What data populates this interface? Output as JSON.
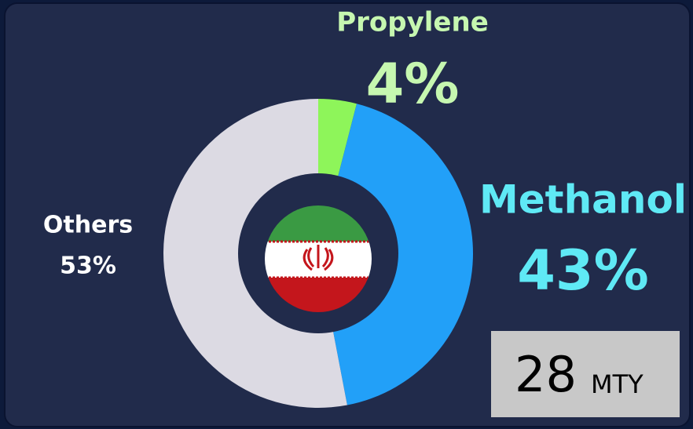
{
  "chart_data": {
    "type": "pie",
    "donut": true,
    "categories": [
      "Propylene",
      "Methanol",
      "Others"
    ],
    "values": [
      4,
      43,
      53
    ],
    "value_labels": [
      "4%",
      "43%",
      "53%"
    ],
    "colors": [
      "#8ef55a",
      "#22a0f8",
      "#dcdae3"
    ],
    "annotation": {
      "value": 28,
      "unit": "MTY"
    }
  }
}
